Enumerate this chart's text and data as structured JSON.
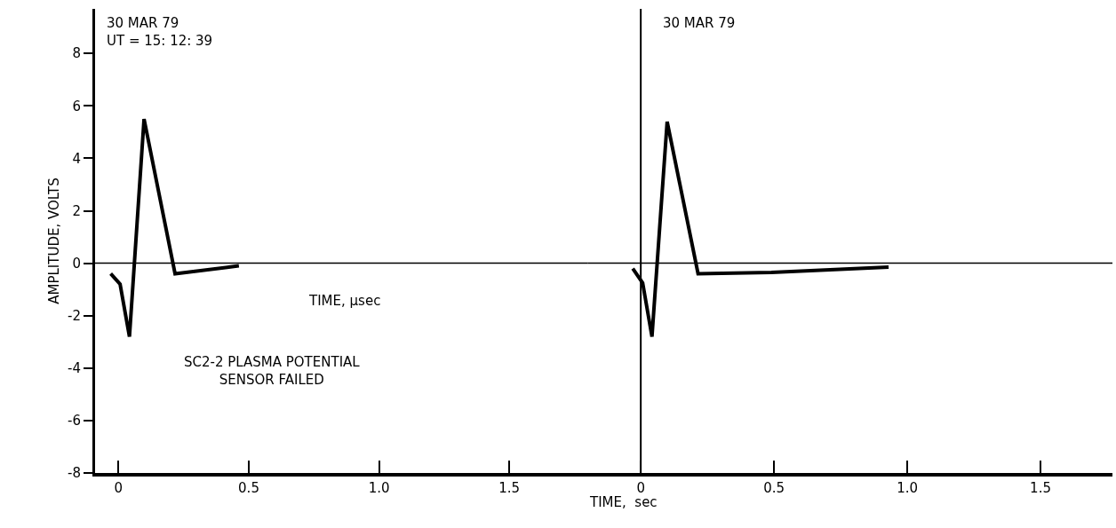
{
  "chart_data": [
    {
      "type": "line",
      "xlabel": "TIME, μsec",
      "ylabel": "AMPLITUDE, VOLTS",
      "x": [
        -0.03,
        0.006,
        0.042,
        0.098,
        0.217,
        0.462
      ],
      "series": [
        {
          "color": "#000000",
          "values": [
            -0.4,
            -0.8,
            -2.8,
            5.5,
            -0.4,
            -0.1
          ]
        }
      ],
      "xlim": [
        -0.09,
        1.8
      ],
      "xticks": [
        0,
        0.5,
        {
          "value": 1.0,
          "label": "1.0"
        },
        1.5
      ],
      "ylim": [
        -8,
        9.7
      ],
      "yticks": [
        -8,
        -6,
        -4,
        -2,
        0,
        2,
        4,
        6,
        8
      ],
      "ref_lines": [
        {
          "axis": "y",
          "value": 0
        }
      ],
      "annotations": [
        "30 MAR 79\nUT = 15: 12: 39",
        "SC2-2 PLASMA POTENTIAL\nSENSOR FAILED"
      ],
      "marker": "none",
      "line_style": "solid"
    },
    {
      "type": "line",
      "xlabel": "TIME,  sec",
      "x": [
        -0.03,
        0.007,
        0.042,
        0.099,
        0.215,
        0.49,
        0.93
      ],
      "series": [
        {
          "color": "#000000",
          "values": [
            -0.2,
            -0.75,
            -2.8,
            5.4,
            -0.4,
            -0.35,
            -0.15
          ]
        }
      ],
      "xlim": [
        -0.2,
        1.77
      ],
      "xticks": [
        0,
        0.5,
        {
          "value": 1.0,
          "label": "1.0"
        },
        1.5
      ],
      "ylim": [
        -8,
        9.7
      ],
      "ref_lines": [
        {
          "axis": "y",
          "value": 0
        },
        {
          "axis": "x",
          "value": 0
        }
      ],
      "annotations": [
        "30 MAR 79"
      ],
      "tick_labels": "x",
      "marker": "none",
      "line_style": "solid"
    }
  ]
}
